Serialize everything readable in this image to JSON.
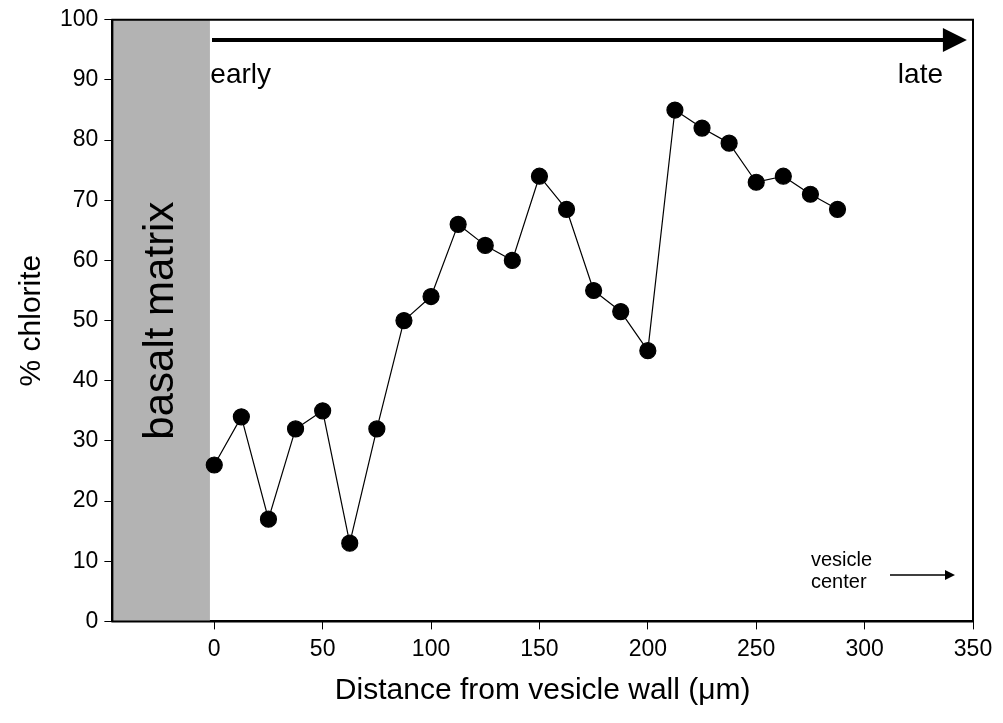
{
  "chart_data": {
    "type": "line",
    "xlabel": "Distance from vesicle wall (μm)",
    "ylabel": "% chlorite",
    "x": [
      0,
      12.5,
      25,
      37.5,
      50,
      62.5,
      75,
      87.5,
      100,
      112.5,
      125,
      137.5,
      150,
      162.5,
      175,
      187.5,
      200,
      212.5,
      225,
      237.5,
      250,
      262.5,
      275,
      287.5
    ],
    "series": [
      {
        "color": "#000000",
        "values": [
          26,
          34,
          17,
          32,
          35,
          13,
          32,
          50,
          54,
          66,
          62.5,
          60,
          74,
          68.5,
          55,
          51.5,
          45,
          85,
          82,
          79.5,
          73,
          74,
          71,
          68.5
        ]
      }
    ],
    "xlim": [
      -47,
      350
    ],
    "xticks": [
      0,
      50,
      100,
      150,
      200,
      250,
      300,
      350
    ],
    "ylim": [
      0,
      100
    ],
    "yticks": [
      0,
      10,
      20,
      30,
      40,
      50,
      60,
      70,
      80,
      90,
      100
    ],
    "bands": [
      {
        "axis": "x",
        "from": -47,
        "to": -2,
        "label": "basalt matrix",
        "color": "#b3b3b3"
      }
    ],
    "annotations": [
      "early",
      "late",
      "vesicle center"
    ],
    "grid": false,
    "legend": false,
    "marker": "circle",
    "line_style": "solid"
  }
}
